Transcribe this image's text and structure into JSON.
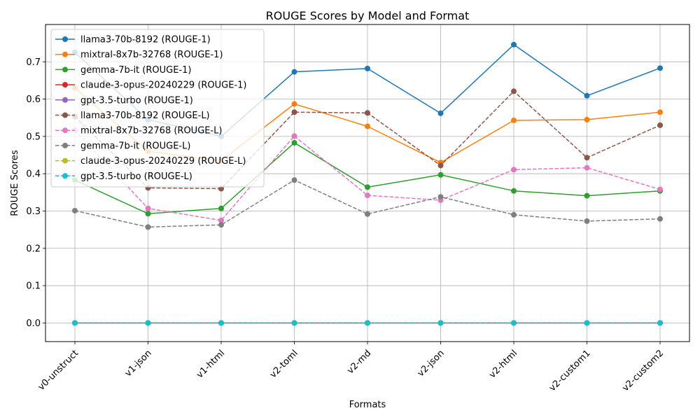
{
  "chart_data": {
    "type": "line",
    "title": "ROUGE Scores by Model and Format",
    "xlabel": "Formats",
    "ylabel": "ROUGE Scores",
    "categories": [
      "v0-unstruct",
      "v1-json",
      "v1-html",
      "v2-toml",
      "v2-md",
      "v2-json",
      "v2-html",
      "v2-custom1",
      "v2-custom2"
    ],
    "yticks": [
      0.0,
      0.1,
      0.2,
      0.3,
      0.4,
      0.5,
      0.6,
      0.7
    ],
    "ytick_labels": [
      "0.0",
      "0.1",
      "0.2",
      "0.3",
      "0.4",
      "0.5",
      "0.6",
      "0.7"
    ],
    "ylim": [
      -0.05,
      0.8
    ],
    "grid": true,
    "legend_position": "top-left",
    "series": [
      {
        "name": "llama3-70b-8192 (ROUGE-1)",
        "color": "#1f77b4",
        "dash": "solid",
        "values": [
          0.725,
          0.545,
          0.5,
          0.673,
          0.682,
          0.562,
          0.746,
          0.609,
          0.683
        ]
      },
      {
        "name": "mixtral-8x7b-32768 (ROUGE-1)",
        "color": "#ff7f0e",
        "dash": "solid",
        "values": [
          0.63,
          0.46,
          0.435,
          0.587,
          0.527,
          0.43,
          0.543,
          0.545,
          0.565
        ]
      },
      {
        "name": "gemma-7b-it (ROUGE-1)",
        "color": "#2ca02c",
        "dash": "solid",
        "values": [
          0.383,
          0.293,
          0.307,
          0.483,
          0.364,
          0.397,
          0.354,
          0.341,
          0.354
        ]
      },
      {
        "name": "claude-3-opus-20240229 (ROUGE-1)",
        "color": "#d62728",
        "dash": "solid",
        "values": [
          0,
          0,
          0,
          0,
          0,
          0,
          0,
          0,
          0
        ]
      },
      {
        "name": "gpt-3.5-turbo (ROUGE-1)",
        "color": "#9467bd",
        "dash": "solid",
        "values": [
          0,
          0,
          0,
          0,
          0,
          0,
          0,
          0,
          0
        ]
      },
      {
        "name": "llama3-70b-8192 (ROUGE-L)",
        "color": "#8c564b",
        "dash": "dashed",
        "values": [
          0.553,
          0.362,
          0.36,
          0.565,
          0.563,
          0.422,
          0.621,
          0.443,
          0.53
        ]
      },
      {
        "name": "mixtral-8x7b-32768 (ROUGE-L)",
        "color": "#e377c2",
        "dash": "dashed",
        "values": [
          0.517,
          0.307,
          0.275,
          0.501,
          0.342,
          0.329,
          0.411,
          0.416,
          0.358
        ]
      },
      {
        "name": "gemma-7b-it (ROUGE-L)",
        "color": "#7f7f7f",
        "dash": "dashed",
        "values": [
          0.301,
          0.257,
          0.263,
          0.383,
          0.292,
          0.338,
          0.29,
          0.273,
          0.279
        ]
      },
      {
        "name": "claude-3-opus-20240229 (ROUGE-L)",
        "color": "#bcbd22",
        "dash": "dashed",
        "values": [
          0,
          0,
          0,
          0,
          0,
          0,
          0,
          0,
          0
        ]
      },
      {
        "name": "gpt-3.5-turbo (ROUGE-L)",
        "color": "#17becf",
        "dash": "dashed",
        "values": [
          0,
          0,
          0,
          0,
          0,
          0,
          0,
          0,
          0
        ]
      }
    ]
  }
}
